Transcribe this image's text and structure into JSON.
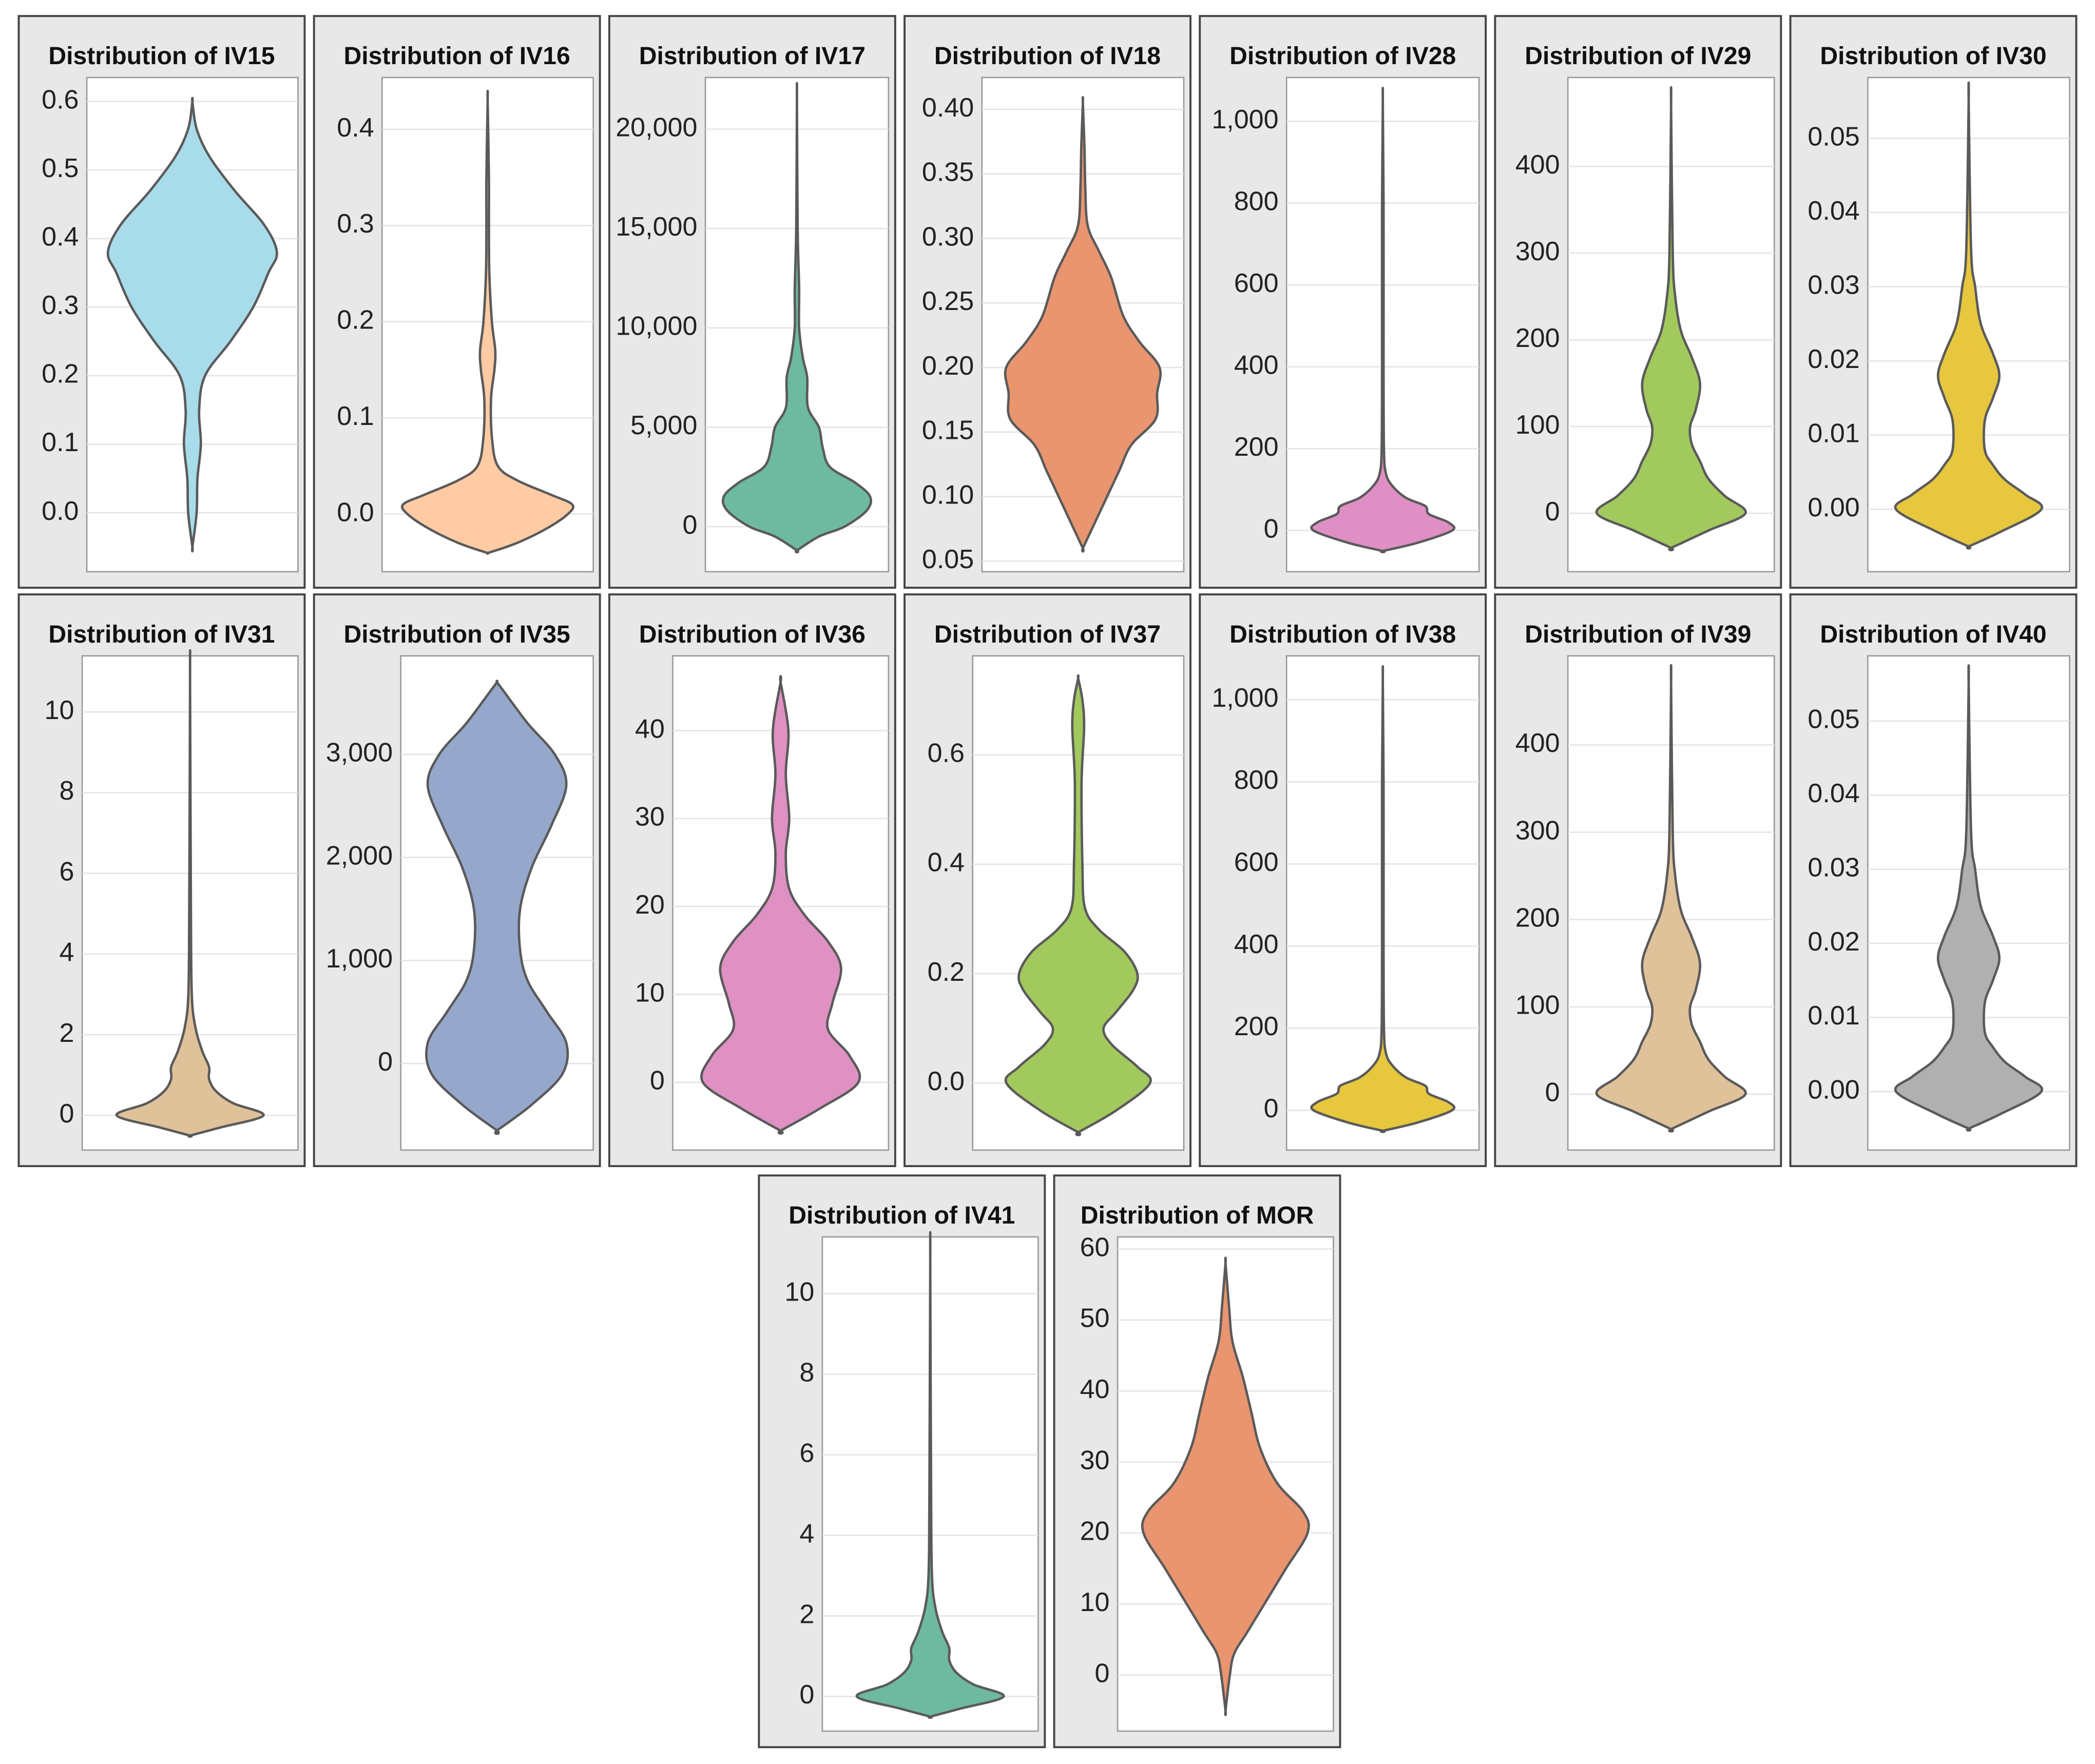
{
  "chart_data": [
    {
      "type": "violin",
      "title": "Distribution of IV15",
      "color": "#a8dcea",
      "ylim": [
        -0.086,
        0.635
      ],
      "yticks": [
        {
          "value": 0,
          "label": "0.0"
        },
        0.1,
        0.2,
        0.3,
        0.4,
        0.5,
        0.6
      ],
      "y": [
        -0.05,
        0.0,
        0.05,
        0.1,
        0.15,
        0.2,
        0.25,
        0.3,
        0.35,
        0.38,
        0.42,
        0.47,
        0.52,
        0.56,
        0.6
      ],
      "density": [
        0,
        0.05,
        0.06,
        0.1,
        0.08,
        0.15,
        0.45,
        0.72,
        0.9,
        1.0,
        0.85,
        0.5,
        0.2,
        0.05,
        0
      ]
    },
    {
      "type": "violin",
      "title": "Distribution of IV16",
      "color": "#ffcba4",
      "ylim": [
        -0.06,
        0.454
      ],
      "yticks": [
        {
          "value": 0,
          "label": "0.0"
        },
        0.1,
        0.2,
        0.3,
        0.4
      ],
      "y": [
        -0.04,
        -0.03,
        -0.015,
        0,
        0.01,
        0.02,
        0.035,
        0.05,
        0.08,
        0.12,
        0.15,
        0.17,
        0.2,
        0.25,
        0.3,
        0.35,
        0.43
      ],
      "density": [
        0.02,
        0.35,
        0.7,
        0.95,
        1.0,
        0.75,
        0.35,
        0.12,
        0.05,
        0.04,
        0.08,
        0.09,
        0.05,
        0.02,
        0.015,
        0.015,
        0
      ]
    },
    {
      "type": "violin",
      "title": "Distribution of IV17",
      "color": "#6dbaa0",
      "ylim": [
        -2270,
        22600
      ],
      "yticks": [
        0,
        {
          "value": 5000,
          "label": "5,000"
        },
        {
          "value": 10000,
          "label": "10,000"
        },
        {
          "value": 15000,
          "label": "15,000"
        },
        {
          "value": 20000,
          "label": "20,000"
        }
      ],
      "y": [
        -1200,
        -500,
        0,
        800,
        1500,
        2200,
        3000,
        4000,
        5000,
        6000,
        7500,
        8500,
        10000,
        12000,
        15000,
        21500
      ],
      "density": [
        0,
        0.3,
        0.65,
        0.95,
        1.0,
        0.8,
        0.45,
        0.35,
        0.3,
        0.15,
        0.14,
        0.08,
        0.03,
        0.03,
        0.01,
        0
      ]
    },
    {
      "type": "violin",
      "title": "Distribution of IV18",
      "color": "#e9956f",
      "ylim": [
        0.0418,
        0.4247
      ],
      "yticks": [
        0.05,
        {
          "value": 0.1,
          "label": "0.10"
        },
        0.15,
        {
          "value": 0.2,
          "label": "0.20"
        },
        0.25,
        {
          "value": 0.3,
          "label": "0.30"
        },
        0.35,
        {
          "value": 0.4,
          "label": "0.40"
        }
      ],
      "y": [
        0.06,
        0.08,
        0.1,
        0.12,
        0.14,
        0.16,
        0.18,
        0.2,
        0.22,
        0.24,
        0.27,
        0.29,
        0.31,
        0.34,
        0.37,
        0.405
      ],
      "density": [
        0,
        0.15,
        0.3,
        0.45,
        0.6,
        0.9,
        0.92,
        0.95,
        0.7,
        0.5,
        0.35,
        0.2,
        0.06,
        0.03,
        0.02,
        0
      ]
    },
    {
      "type": "violin",
      "title": "Distribution of IV28",
      "color": "#df8fc4",
      "ylim": [
        -100.6,
        1107
      ],
      "yticks": [
        0,
        200,
        400,
        600,
        800,
        {
          "value": 1000,
          "label": "1,000"
        }
      ],
      "y": [
        -50,
        -30,
        0,
        20,
        40,
        60,
        80,
        110,
        140,
        200,
        400,
        800,
        1050
      ],
      "density": [
        0,
        0.45,
        0.9,
        0.85,
        0.6,
        0.55,
        0.3,
        0.12,
        0.04,
        0.015,
        0.01,
        0.01,
        0
      ]
    },
    {
      "type": "violin",
      "title": "Distribution of IV29",
      "color": "#a2c95d",
      "ylim": [
        -67.4,
        502.6
      ],
      "yticks": [
        0,
        100,
        200,
        300,
        400
      ],
      "y": [
        -40,
        -20,
        0,
        20,
        40,
        60,
        80,
        100,
        120,
        150,
        180,
        210,
        250,
        300,
        470
      ],
      "density": [
        0,
        0.45,
        0.9,
        0.65,
        0.45,
        0.35,
        0.25,
        0.23,
        0.3,
        0.35,
        0.25,
        0.12,
        0.05,
        0.02,
        0
      ]
    },
    {
      "type": "violin",
      "title": "Distribution of IV30",
      "color": "#e6c73e",
      "ylim": [
        -0.0084,
        0.0582
      ],
      "yticks": [
        {
          "value": 0,
          "label": "0.00"
        },
        0.01,
        0.02,
        0.03,
        0.04,
        0.05
      ],
      "y": [
        -0.005,
        -0.003,
        0,
        0.002,
        0.004,
        0.006,
        0.008,
        0.012,
        0.015,
        0.018,
        0.021,
        0.025,
        0.03,
        0.035,
        0.055
      ],
      "density": [
        0,
        0.4,
        0.9,
        0.7,
        0.45,
        0.3,
        0.2,
        0.2,
        0.3,
        0.38,
        0.3,
        0.15,
        0.08,
        0.03,
        0
      ]
    },
    {
      "type": "violin",
      "title": "Distribution of IV31",
      "color": "#dfc29a",
      "ylim": [
        -0.86,
        11.39
      ],
      "yticks": [
        0,
        2,
        4,
        6,
        8,
        10
      ],
      "y": [
        -0.5,
        -0.3,
        0,
        0.3,
        0.6,
        0.9,
        1.2,
        1.6,
        2.2,
        3,
        5,
        10.8
      ],
      "density": [
        0,
        0.35,
        0.85,
        0.5,
        0.3,
        0.22,
        0.22,
        0.14,
        0.06,
        0.02,
        0.01,
        0
      ]
    },
    {
      "type": "violin",
      "title": "Distribution of IV35",
      "color": "#95a8cc",
      "ylim": [
        -840,
        3956
      ],
      "yticks": [
        0,
        {
          "value": 1000,
          "label": "1,000"
        },
        {
          "value": 2000,
          "label": "2,000"
        },
        {
          "value": 3000,
          "label": "3,000"
        }
      ],
      "y": [
        -650,
        -400,
        -100,
        200,
        500,
        800,
        1100,
        1500,
        1900,
        2300,
        2700,
        3000,
        3300,
        3600,
        3700
      ],
      "density": [
        0,
        0.45,
        0.85,
        0.9,
        0.65,
        0.4,
        0.3,
        0.3,
        0.45,
        0.7,
        0.9,
        0.75,
        0.4,
        0.1,
        0
      ]
    },
    {
      "type": "violin",
      "title": "Distribution of IV36",
      "color": "#df91c3",
      "ylim": [
        -7.7,
        48.5
      ],
      "yticks": [
        0,
        10,
        20,
        30,
        40
      ],
      "y": [
        -5.5,
        -3,
        0,
        3,
        6,
        9,
        13,
        16,
        19,
        22,
        26,
        30,
        35,
        40,
        45.5
      ],
      "density": [
        0,
        0.45,
        0.9,
        0.8,
        0.55,
        0.6,
        0.7,
        0.55,
        0.28,
        0.1,
        0.06,
        0.1,
        0.06,
        0.09,
        0
      ]
    },
    {
      "type": "violin",
      "title": "Distribution of IV37",
      "color": "#a2c95d",
      "ylim": [
        -0.1225,
        0.781
      ],
      "yticks": [
        {
          "value": 0,
          "label": "0.0"
        },
        0.2,
        0.4,
        0.6
      ],
      "y": [
        -0.09,
        -0.05,
        0,
        0.03,
        0.07,
        0.1,
        0.13,
        0.17,
        0.2,
        0.24,
        0.28,
        0.32,
        0.4,
        0.55,
        0.65,
        0.7,
        0.74
      ],
      "density": [
        0,
        0.45,
        0.85,
        0.7,
        0.4,
        0.3,
        0.45,
        0.65,
        0.7,
        0.55,
        0.25,
        0.08,
        0.05,
        0.04,
        0.07,
        0.05,
        0
      ]
    },
    {
      "type": "violin",
      "title": "Distribution of IV38",
      "color": "#e6c73e",
      "ylim": [
        -97,
        1107
      ],
      "yticks": [
        0,
        200,
        400,
        600,
        800,
        {
          "value": 1000,
          "label": "1,000"
        }
      ],
      "y": [
        -50,
        -30,
        0,
        20,
        40,
        60,
        80,
        110,
        140,
        200,
        400,
        800,
        1050
      ],
      "density": [
        0,
        0.45,
        0.9,
        0.85,
        0.6,
        0.55,
        0.3,
        0.12,
        0.04,
        0.015,
        0.01,
        0.01,
        0
      ]
    },
    {
      "type": "violin",
      "title": "Distribution of IV39",
      "color": "#dfc29a",
      "ylim": [
        -64,
        502
      ],
      "yticks": [
        0,
        100,
        200,
        300,
        400
      ],
      "y": [
        -40,
        -20,
        0,
        20,
        40,
        60,
        80,
        100,
        120,
        150,
        180,
        210,
        250,
        300,
        470
      ],
      "density": [
        0,
        0.45,
        0.9,
        0.65,
        0.45,
        0.35,
        0.25,
        0.23,
        0.3,
        0.35,
        0.25,
        0.12,
        0.05,
        0.02,
        0
      ]
    },
    {
      "type": "violin",
      "title": "Distribution of IV40",
      "color": "#b0b0b0",
      "ylim": [
        -0.0079,
        0.0588
      ],
      "yticks": [
        {
          "value": 0,
          "label": "0.00"
        },
        0.01,
        0.02,
        0.03,
        0.04,
        0.05
      ],
      "y": [
        -0.005,
        -0.003,
        0,
        0.002,
        0.004,
        0.006,
        0.008,
        0.012,
        0.015,
        0.018,
        0.021,
        0.025,
        0.03,
        0.035,
        0.055
      ],
      "density": [
        0,
        0.4,
        0.9,
        0.7,
        0.45,
        0.3,
        0.2,
        0.2,
        0.3,
        0.38,
        0.3,
        0.15,
        0.08,
        0.03,
        0
      ]
    },
    {
      "type": "violin",
      "title": "Distribution of IV41",
      "color": "#6dbaa0",
      "ylim": [
        -0.86,
        11.41
      ],
      "yticks": [
        0,
        2,
        4,
        6,
        8,
        10
      ],
      "y": [
        -0.5,
        -0.3,
        0,
        0.3,
        0.6,
        0.9,
        1.2,
        1.6,
        2.2,
        3,
        5,
        10.8
      ],
      "density": [
        0,
        0.35,
        0.85,
        0.5,
        0.3,
        0.22,
        0.22,
        0.14,
        0.06,
        0.02,
        0.01,
        0
      ]
    },
    {
      "type": "violin",
      "title": "Distribution of MOR",
      "color": "#e9956f",
      "ylim": [
        -7.9,
        61.7
      ],
      "yticks": [
        0,
        10,
        20,
        30,
        40,
        50,
        60
      ],
      "y": [
        -5,
        0,
        3,
        6,
        10,
        15,
        20,
        23,
        27,
        32,
        37,
        42,
        47,
        52,
        58
      ],
      "density": [
        0,
        0.05,
        0.1,
        0.25,
        0.45,
        0.7,
        0.95,
        0.9,
        0.6,
        0.4,
        0.3,
        0.2,
        0.08,
        0.04,
        0
      ]
    }
  ]
}
